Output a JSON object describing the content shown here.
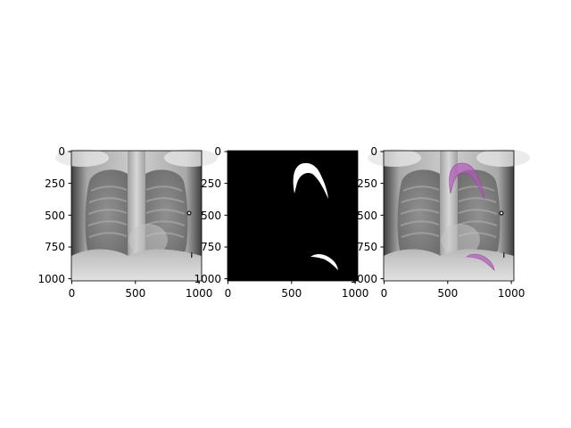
{
  "figure": {
    "panels": [
      {
        "id": "xray",
        "image": "chest-xray",
        "xticks": [
          "0",
          "500",
          "1000"
        ],
        "yticks": [
          "0",
          "250",
          "500",
          "750",
          "1000"
        ]
      },
      {
        "id": "mask",
        "image": "binary-mask",
        "xticks": [
          "0",
          "500",
          "1000"
        ],
        "yticks": [
          "0",
          "250",
          "500",
          "750",
          "1000"
        ]
      },
      {
        "id": "overlay",
        "image": "chest-xray-with-mask-overlay",
        "xticks": [
          "0",
          "500",
          "1000"
        ],
        "yticks": [
          "0",
          "250",
          "500",
          "750",
          "1000"
        ]
      }
    ],
    "axis_range": {
      "x": [
        0,
        1023
      ],
      "y": [
        0,
        1023
      ]
    },
    "colors": {
      "mask_fill": "#ffffff",
      "mask_background": "#000000",
      "overlay": "#b05ab8"
    }
  }
}
